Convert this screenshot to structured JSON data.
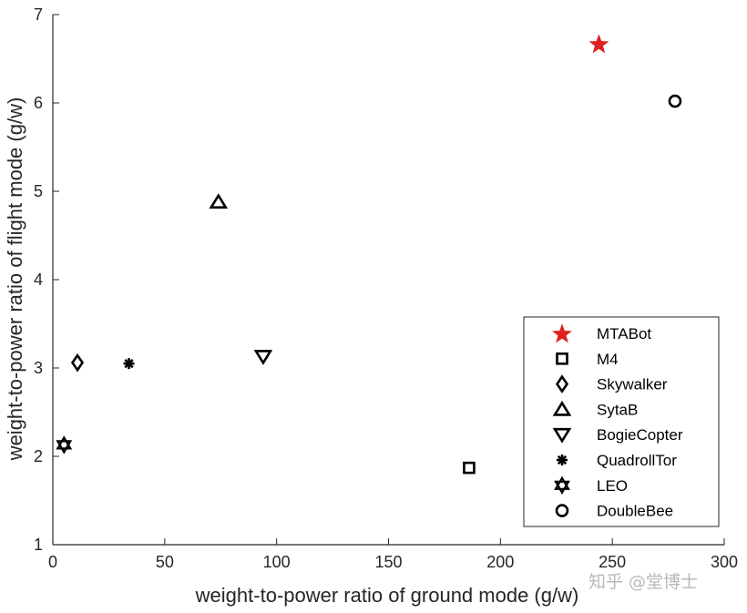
{
  "chart_data": {
    "type": "scatter",
    "title": "",
    "xlabel": "weight-to-power ratio of ground mode (g/w)",
    "ylabel": "weight-to-power ratio of flight mode (g/w)",
    "xlim": [
      0,
      300
    ],
    "ylim": [
      1,
      7
    ],
    "xticks": [
      0,
      50,
      100,
      150,
      200,
      250,
      300
    ],
    "yticks": [
      1,
      2,
      3,
      4,
      5,
      6,
      7
    ],
    "grid": false,
    "legend_position": "bottom-right",
    "series": [
      {
        "name": "MTABot",
        "marker": "star5",
        "color": "#e02020",
        "x": 244,
        "y": 6.67
      },
      {
        "name": "M4",
        "marker": "square",
        "color": "#000000",
        "x": 186,
        "y": 1.87
      },
      {
        "name": "Skywalker",
        "marker": "diamond",
        "color": "#000000",
        "x": 11,
        "y": 3.06
      },
      {
        "name": "SytaB",
        "marker": "triangle-up",
        "color": "#000000",
        "x": 74,
        "y": 4.88
      },
      {
        "name": "BogieCopter",
        "marker": "triangle-down",
        "color": "#000000",
        "x": 94,
        "y": 3.13
      },
      {
        "name": "QuadrollTor",
        "marker": "asterisk",
        "color": "#000000",
        "x": 34,
        "y": 3.05
      },
      {
        "name": "LEO",
        "marker": "hexagram",
        "color": "#000000",
        "x": 5,
        "y": 2.13
      },
      {
        "name": "DoubleBee",
        "marker": "circle",
        "color": "#000000",
        "x": 278,
        "y": 6.02
      }
    ]
  },
  "watermark": "知乎 @堂博士"
}
